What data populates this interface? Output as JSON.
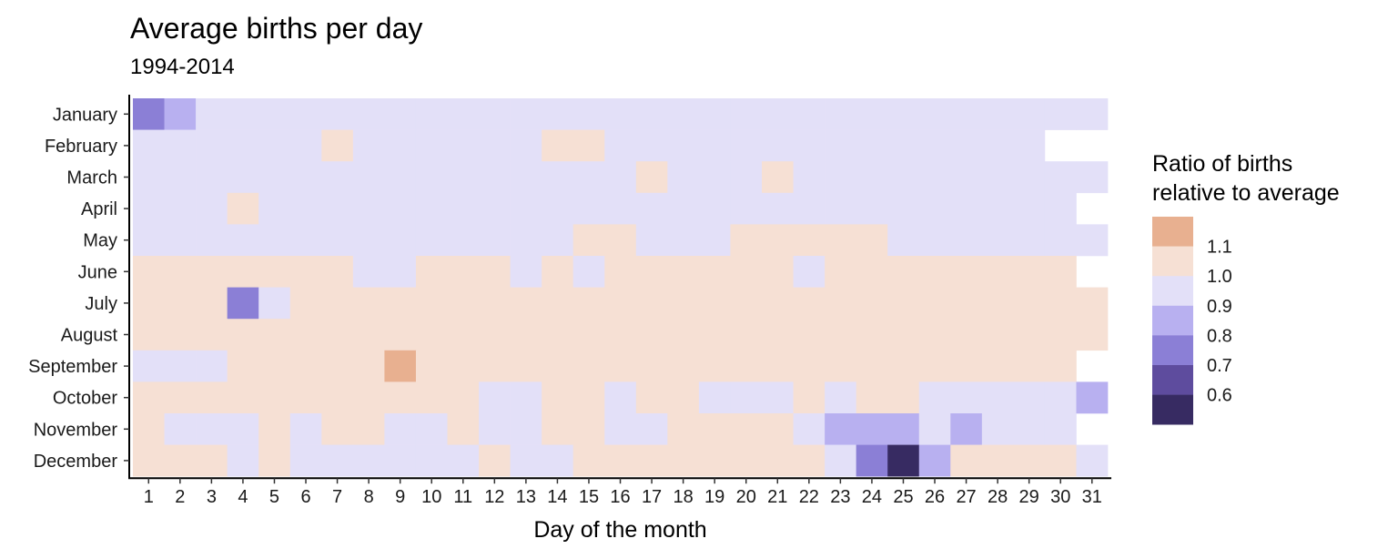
{
  "chart_data": {
    "type": "heatmap",
    "title": "Average births per day",
    "subtitle": "1994-2014",
    "xlabel": "Day of the month",
    "ylabel": "",
    "x": [
      1,
      2,
      3,
      4,
      5,
      6,
      7,
      8,
      9,
      10,
      11,
      12,
      13,
      14,
      15,
      16,
      17,
      18,
      19,
      20,
      21,
      22,
      23,
      24,
      25,
      26,
      27,
      28,
      29,
      30,
      31
    ],
    "y": [
      "January",
      "February",
      "March",
      "April",
      "May",
      "June",
      "July",
      "August",
      "September",
      "October",
      "November",
      "December"
    ],
    "values_binned": [
      [
        0.8,
        0.9,
        1.0,
        1.0,
        1.0,
        1.0,
        1.0,
        1.0,
        1.0,
        1.0,
        1.0,
        1.0,
        1.0,
        1.0,
        1.0,
        1.0,
        1.0,
        1.0,
        1.0,
        1.0,
        1.0,
        1.0,
        1.0,
        1.0,
        1.0,
        1.0,
        1.0,
        1.0,
        1.0,
        1.0,
        1.0
      ],
      [
        1.0,
        1.0,
        1.0,
        1.0,
        1.0,
        1.0,
        1.1,
        1.0,
        1.0,
        1.0,
        1.0,
        1.0,
        1.0,
        1.1,
        1.1,
        1.0,
        1.0,
        1.0,
        1.0,
        1.0,
        1.0,
        1.0,
        1.0,
        1.0,
        1.0,
        1.0,
        1.0,
        1.0,
        1.0,
        null,
        null
      ],
      [
        1.0,
        1.0,
        1.0,
        1.0,
        1.0,
        1.0,
        1.0,
        1.0,
        1.0,
        1.0,
        1.0,
        1.0,
        1.0,
        1.0,
        1.0,
        1.0,
        1.1,
        1.0,
        1.0,
        1.0,
        1.1,
        1.0,
        1.0,
        1.0,
        1.0,
        1.0,
        1.0,
        1.0,
        1.0,
        1.0,
        1.0
      ],
      [
        1.0,
        1.0,
        1.0,
        1.1,
        1.0,
        1.0,
        1.0,
        1.0,
        1.0,
        1.0,
        1.0,
        1.0,
        1.0,
        1.0,
        1.0,
        1.0,
        1.0,
        1.0,
        1.0,
        1.0,
        1.0,
        1.0,
        1.0,
        1.0,
        1.0,
        1.0,
        1.0,
        1.0,
        1.0,
        1.0,
        null
      ],
      [
        1.0,
        1.0,
        1.0,
        1.0,
        1.0,
        1.0,
        1.0,
        1.0,
        1.0,
        1.0,
        1.0,
        1.0,
        1.0,
        1.0,
        1.1,
        1.1,
        1.0,
        1.0,
        1.0,
        1.1,
        1.1,
        1.1,
        1.1,
        1.1,
        1.0,
        1.0,
        1.0,
        1.0,
        1.0,
        1.0,
        1.0
      ],
      [
        1.1,
        1.1,
        1.1,
        1.1,
        1.1,
        1.1,
        1.1,
        1.0,
        1.0,
        1.1,
        1.1,
        1.1,
        1.0,
        1.1,
        1.0,
        1.1,
        1.1,
        1.1,
        1.1,
        1.1,
        1.1,
        1.0,
        1.1,
        1.1,
        1.1,
        1.1,
        1.1,
        1.1,
        1.1,
        1.1,
        null
      ],
      [
        1.1,
        1.1,
        1.1,
        0.8,
        1.0,
        1.1,
        1.1,
        1.1,
        1.1,
        1.1,
        1.1,
        1.1,
        1.1,
        1.1,
        1.1,
        1.1,
        1.1,
        1.1,
        1.1,
        1.1,
        1.1,
        1.1,
        1.1,
        1.1,
        1.1,
        1.1,
        1.1,
        1.1,
        1.1,
        1.1,
        1.1
      ],
      [
        1.1,
        1.1,
        1.1,
        1.1,
        1.1,
        1.1,
        1.1,
        1.1,
        1.1,
        1.1,
        1.1,
        1.1,
        1.1,
        1.1,
        1.1,
        1.1,
        1.1,
        1.1,
        1.1,
        1.1,
        1.1,
        1.1,
        1.1,
        1.1,
        1.1,
        1.1,
        1.1,
        1.1,
        1.1,
        1.1,
        1.1
      ],
      [
        1.0,
        1.0,
        1.0,
        1.1,
        1.1,
        1.1,
        1.1,
        1.1,
        1.2,
        1.1,
        1.1,
        1.1,
        1.1,
        1.1,
        1.1,
        1.1,
        1.1,
        1.1,
        1.1,
        1.1,
        1.1,
        1.1,
        1.1,
        1.1,
        1.1,
        1.1,
        1.1,
        1.1,
        1.1,
        1.1,
        null
      ],
      [
        1.1,
        1.1,
        1.1,
        1.1,
        1.1,
        1.1,
        1.1,
        1.1,
        1.1,
        1.1,
        1.1,
        1.0,
        1.0,
        1.1,
        1.1,
        1.0,
        1.1,
        1.1,
        1.0,
        1.0,
        1.0,
        1.1,
        1.0,
        1.1,
        1.1,
        1.0,
        1.0,
        1.0,
        1.0,
        1.0,
        0.9
      ],
      [
        1.1,
        1.0,
        1.0,
        1.0,
        1.1,
        1.0,
        1.1,
        1.1,
        1.0,
        1.0,
        1.1,
        1.0,
        1.0,
        1.1,
        1.1,
        1.0,
        1.0,
        1.1,
        1.1,
        1.1,
        1.1,
        1.0,
        0.9,
        0.9,
        0.9,
        1.0,
        0.9,
        1.0,
        1.0,
        1.0,
        null
      ],
      [
        1.1,
        1.1,
        1.1,
        1.0,
        1.1,
        1.0,
        1.0,
        1.0,
        1.0,
        1.0,
        1.0,
        1.1,
        1.0,
        1.0,
        1.1,
        1.1,
        1.1,
        1.1,
        1.1,
        1.1,
        1.1,
        1.1,
        1.0,
        0.8,
        0.6,
        0.9,
        1.1,
        1.1,
        1.1,
        1.1,
        1.0
      ]
    ],
    "legend": {
      "title_lines": [
        "Ratio of births",
        "relative to average"
      ],
      "labels": [
        "1.1",
        "1.0",
        "0.9",
        "0.8",
        "0.7",
        "0.6"
      ],
      "bins": [
        1.2,
        1.1,
        1.0,
        0.9,
        0.8,
        0.7,
        0.6
      ],
      "colors": [
        "#e8b090",
        "#f6e0d4",
        "#e3e0f8",
        "#b8b0f0",
        "#8b7fd6",
        "#5e4c9e",
        "#372b62"
      ],
      "placement": "right"
    },
    "grid": false
  }
}
